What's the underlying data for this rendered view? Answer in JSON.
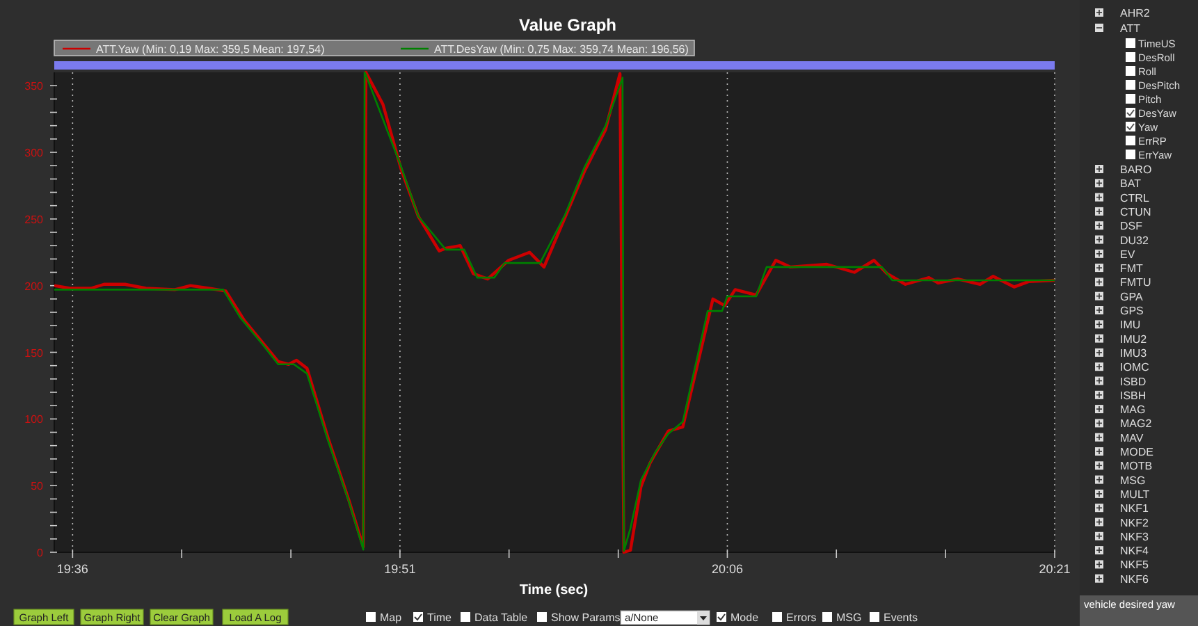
{
  "chart_data": {
    "type": "line",
    "title": "Value Graph",
    "xlabel": "Time (sec)",
    "xlim": [
      19.586,
      20.35
    ],
    "ylim": [
      0,
      360
    ],
    "xticks": [
      {
        "value": 19.6,
        "label": "19:36"
      },
      {
        "value": 19.6833,
        "label": null
      },
      {
        "value": 19.7667,
        "label": null
      },
      {
        "value": 19.85,
        "label": "19:51"
      },
      {
        "value": 19.9333,
        "label": null
      },
      {
        "value": 20.0167,
        "label": null
      },
      {
        "value": 20.1,
        "label": "20:06"
      },
      {
        "value": 20.1833,
        "label": null
      },
      {
        "value": 20.2667,
        "label": null
      },
      {
        "value": 20.35,
        "label": "20:21"
      }
    ],
    "yticks": [
      0,
      {
        "value": 10,
        "label": null
      },
      {
        "value": 20,
        "label": null
      },
      {
        "value": 30,
        "label": null
      },
      {
        "value": 40,
        "label": null
      },
      50,
      {
        "value": 60,
        "label": null
      },
      {
        "value": 70,
        "label": null
      },
      {
        "value": 80,
        "label": null
      },
      {
        "value": 90,
        "label": null
      },
      100,
      {
        "value": 110,
        "label": null
      },
      {
        "value": 120,
        "label": null
      },
      {
        "value": 130,
        "label": null
      },
      {
        "value": 140,
        "label": null
      },
      150,
      {
        "value": 160,
        "label": null
      },
      {
        "value": 170,
        "label": null
      },
      {
        "value": 180,
        "label": null
      },
      {
        "value": 190,
        "label": null
      },
      200,
      {
        "value": 210,
        "label": null
      },
      {
        "value": 220,
        "label": null
      },
      {
        "value": 230,
        "label": null
      },
      {
        "value": 240,
        "label": null
      },
      250,
      {
        "value": 260,
        "label": null
      },
      {
        "value": 270,
        "label": null
      },
      {
        "value": 280,
        "label": null
      },
      {
        "value": 290,
        "label": null
      },
      300,
      {
        "value": 310,
        "label": null
      },
      {
        "value": 320,
        "label": null
      },
      {
        "value": 330,
        "label": null
      },
      {
        "value": 340,
        "label": null
      },
      350
    ],
    "grid": "x",
    "legend": "top",
    "series": [
      {
        "name": "ATT.Yaw (Min: 0,19 Max: 359,5 Mean: 197,54)",
        "color": "#cc0000",
        "x": [
          19.586,
          19.598,
          19.614,
          19.624,
          19.64,
          19.656,
          19.678,
          19.69,
          19.704,
          19.717,
          19.731,
          19.747,
          19.757,
          19.765,
          19.771,
          19.779,
          19.795,
          19.811,
          19.822,
          19.824,
          19.837,
          19.851,
          19.864,
          19.88,
          19.885,
          19.896,
          19.906,
          19.917,
          19.933,
          19.949,
          19.96,
          19.976,
          19.991,
          20.007,
          20.018,
          20.021,
          20.026,
          20.034,
          20.041,
          20.055,
          20.066,
          20.077,
          20.089,
          20.098,
          20.106,
          20.122,
          20.137,
          20.148,
          20.176,
          20.197,
          20.212,
          20.222,
          20.236,
          20.254,
          20.261,
          20.276,
          20.293,
          20.303,
          20.319,
          20.33,
          20.35
        ],
        "values": [
          200,
          198,
          198,
          201,
          201,
          198,
          197,
          200,
          198,
          196,
          174,
          155,
          143,
          141,
          144,
          138,
          86,
          39,
          4,
          360,
          336,
          287,
          252,
          226,
          228,
          230,
          209,
          205,
          219,
          225,
          214,
          251,
          286,
          317,
          359,
          0,
          1.5,
          49,
          67,
          91,
          94,
          140,
          190,
          185,
          197,
          193,
          219,
          214,
          216,
          210,
          219,
          209,
          201,
          206,
          202,
          205,
          201,
          207,
          199,
          203,
          204
        ]
      },
      {
        "name": "ATT.DesYaw (Min: 0,75 Max: 359,74 Mean: 196,56)",
        "color": "#008000",
        "x": [
          19.586,
          19.715,
          19.728,
          19.745,
          19.757,
          19.769,
          19.779,
          19.795,
          19.811,
          19.822,
          19.823,
          19.824,
          19.851,
          19.864,
          19.885,
          19.899,
          19.909,
          19.922,
          19.93,
          19.957,
          19.976,
          19.991,
          20.007,
          20.02,
          20.021,
          20.026,
          20.034,
          20.045,
          20.055,
          20.066,
          20.085,
          20.096,
          20.1,
          20.122,
          20.13,
          20.218,
          20.226,
          20.35
        ],
        "values": [
          197,
          197,
          176,
          156,
          141,
          141,
          134,
          84,
          38,
          2,
          360,
          358,
          289,
          252,
          227,
          227,
          206,
          206,
          217,
          217,
          253,
          289,
          320,
          356,
          1,
          18,
          54,
          75,
          89,
          98,
          181,
          181,
          192,
          192,
          214,
          214,
          204,
          204
        ]
      }
    ],
    "annotations": [
      "Graph Left",
      "Graph Right",
      "Clear Graph",
      "Load A Log",
      "Map",
      "Time",
      "Data Table",
      "Show Params",
      "a/None",
      "Mode",
      "Errors",
      "MSG",
      "Events",
      "AHR2",
      "ATT",
      "TimeUS",
      "DesRoll",
      "Roll",
      "DesPitch",
      "Pitch",
      "DesYaw",
      "Yaw",
      "ErrRP",
      "ErrYaw",
      "BARO",
      "BAT",
      "CTRL",
      "CTUN",
      "DSF",
      "DU32",
      "EV",
      "FMT",
      "FMTU",
      "GPA",
      "GPS",
      "IMU",
      "IMU2",
      "IMU3",
      "IOMC",
      "ISBD",
      "ISBH",
      "MAG",
      "MAG2",
      "MAV",
      "MODE",
      "MOTB",
      "MSG",
      "MULT",
      "NKF1",
      "NKF2",
      "NKF3",
      "NKF4",
      "NKF5",
      "NKF6",
      "vehicle desired yaw"
    ]
  }
}
